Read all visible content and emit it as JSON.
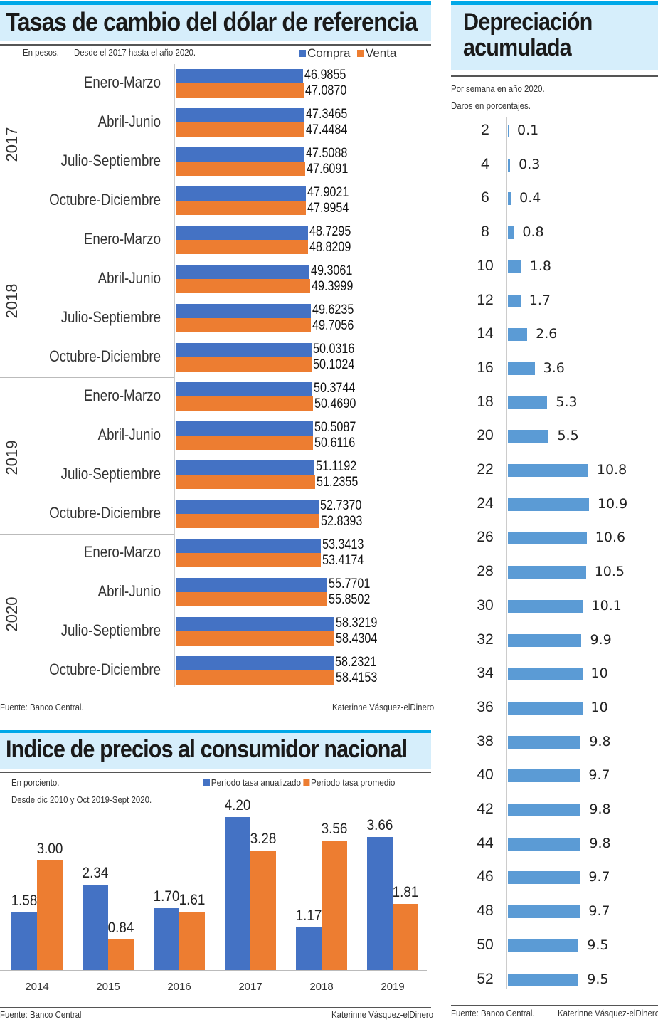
{
  "colors": {
    "compra": "#4472c4",
    "venta": "#ed7d31",
    "depreciacion": "#5b9bd5",
    "accent": "#00a8e8",
    "title_bg": "#d6eefb"
  },
  "exchange": {
    "title": "Tasas de cambio del dólar de referencia",
    "note1": "En pesos.",
    "note2": "Desde el 2017 hasta el año 2020.",
    "source": "Fuente: Banco Central.",
    "author": "Katerinne Vásquez-elDinero"
  },
  "depreciation": {
    "title_line1": "Depreciación",
    "title_line2": "acumulada",
    "note1": "Por semana en año 2020.",
    "note2": "Daros en porcentajes.",
    "source": "Fuente: Banco Central.",
    "author": "Katerinne Vásquez-elDinero"
  },
  "cpi": {
    "title": "Indice de precios al consumidor nacional",
    "note1": "En porciento.",
    "note2": "Desde dic 2010 y Oct 2019-Sept 2020.",
    "source": "Fuente: Banco Central",
    "author": "Katerinne Vásquez-elDinero"
  },
  "chart_data": [
    {
      "type": "bar",
      "orientation": "horizontal",
      "title": "Tasas de cambio del dólar de referencia",
      "legend": [
        "Compra",
        "Venta"
      ],
      "legend_position": "top-right",
      "groups": [
        {
          "year": "2017",
          "quarters": [
            {
              "label": "Enero-Marzo",
              "compra": "46.9855",
              "venta": "47.0870"
            },
            {
              "label": "Abril-Junio",
              "compra": "47.3465",
              "venta": "47.4484"
            },
            {
              "label": "Julio-Septiembre",
              "compra": "47.5088",
              "venta": "47.6091"
            },
            {
              "label": "Octubre-Diciembre",
              "compra": "47.9021",
              "venta": "47.9954"
            }
          ]
        },
        {
          "year": "2018",
          "quarters": [
            {
              "label": "Enero-Marzo",
              "compra": "48.7295",
              "venta": "48.8209"
            },
            {
              "label": "Abril-Junio",
              "compra": "49.3061",
              "venta": "49.3999"
            },
            {
              "label": "Julio-Septiembre",
              "compra": "49.6235",
              "venta": "49.7056"
            },
            {
              "label": "Octubre-Diciembre",
              "compra": "50.0316",
              "venta": "50.1024"
            }
          ]
        },
        {
          "year": "2019",
          "quarters": [
            {
              "label": "Enero-Marzo",
              "compra": "50.3744",
              "venta": "50.4690"
            },
            {
              "label": "Abril-Junio",
              "compra": "50.5087",
              "venta": "50.6116"
            },
            {
              "label": "Julio-Septiembre",
              "compra": "51.1192",
              "venta": "51.2355"
            },
            {
              "label": "Octubre-Diciembre",
              "compra": "52.7370",
              "venta": "52.8393"
            }
          ]
        },
        {
          "year": "2020",
          "quarters": [
            {
              "label": "Enero-Marzo",
              "compra": "53.3413",
              "venta": "53.4174"
            },
            {
              "label": "Abril-Junio",
              "compra": "55.7701",
              "venta": "55.8502"
            },
            {
              "label": "Julio-Septiembre",
              "compra": "58.3219",
              "venta": "58.4304"
            },
            {
              "label": "Octubre-Diciembre",
              "compra": "58.2321",
              "venta": "58.4153"
            }
          ]
        }
      ]
    },
    {
      "type": "bar",
      "orientation": "horizontal",
      "title": "Depreciación acumulada",
      "categories": [
        "2",
        "4",
        "6",
        "8",
        "10",
        "12",
        "14",
        "16",
        "18",
        "20",
        "22",
        "24",
        "26",
        "28",
        "30",
        "32",
        "34",
        "36",
        "38",
        "40",
        "42",
        "44",
        "46",
        "48",
        "50",
        "52"
      ],
      "values": [
        "0.1",
        "0.3",
        "0.4",
        "0.8",
        "1.8",
        "1.7",
        "2.6",
        "3.6",
        "5.3",
        "5.5",
        "10.8",
        "10.9",
        "10.6",
        "10.5",
        "10.1",
        "9.9",
        "10",
        "10",
        "9.8",
        "9.7",
        "9.8",
        "9.8",
        "9.7",
        "9.7",
        "9.5",
        "9.5"
      ]
    },
    {
      "type": "bar",
      "title": "Indice de precios al consumidor nacional",
      "categories": [
        "2014",
        "2015",
        "2016",
        "2017",
        "2018",
        "2019"
      ],
      "legend_position": "top-right",
      "series": [
        {
          "name": "Período tasa anualizado",
          "values": [
            "1.58",
            "2.34",
            "1.70",
            "4.20",
            "1.17",
            "3.66"
          ]
        },
        {
          "name": "Período tasa promedio",
          "values": [
            "3.00",
            "0.84",
            "1.61",
            "3.28",
            "3.56",
            "1.81"
          ]
        }
      ]
    }
  ]
}
